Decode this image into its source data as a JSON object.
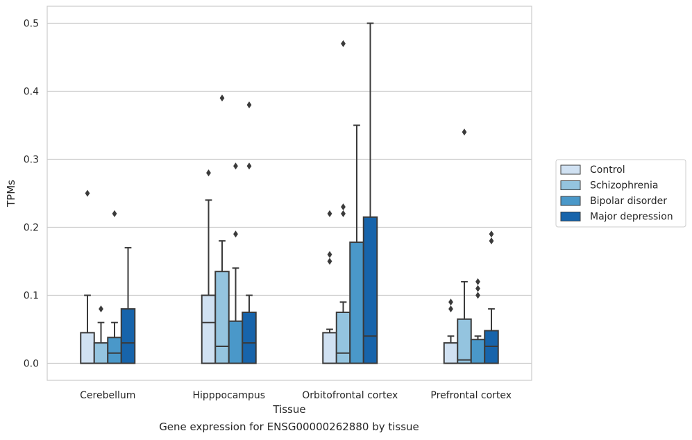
{
  "chart_data": {
    "type": "box",
    "caption": "Gene expression for ENSG00000262880 by tissue",
    "xlabel": "Tissue",
    "ylabel": "TPMs",
    "ylim": [
      -0.025,
      0.525
    ],
    "yticks": [
      0.0,
      0.1,
      0.2,
      0.3,
      0.4,
      0.5
    ],
    "ytick_labels": [
      "0.0",
      "0.1",
      "0.2",
      "0.3",
      "0.4",
      "0.5"
    ],
    "grid": "horizontal",
    "legend_position": "right",
    "categories": [
      "Cerebellum",
      "Hipppocampus",
      "Orbitofrontal cortex",
      "Prefrontal cortex"
    ],
    "series": [
      {
        "name": "Control",
        "color": "#d0e1f2",
        "boxes": [
          {
            "whisker_low": 0.0,
            "q1": 0.0,
            "median": 0.0,
            "q3": 0.045,
            "whisker_high": 0.1,
            "outliers": [
              0.25
            ]
          },
          {
            "whisker_low": 0.0,
            "q1": 0.0,
            "median": 0.06,
            "q3": 0.1,
            "whisker_high": 0.24,
            "outliers": [
              0.28
            ]
          },
          {
            "whisker_low": 0.0,
            "q1": 0.0,
            "median": 0.0,
            "q3": 0.045,
            "whisker_high": 0.05,
            "outliers": [
              0.15,
              0.16,
              0.22
            ]
          },
          {
            "whisker_low": 0.0,
            "q1": 0.0,
            "median": 0.0,
            "q3": 0.03,
            "whisker_high": 0.04,
            "outliers": [
              0.08,
              0.09
            ]
          }
        ]
      },
      {
        "name": "Schizophrenia",
        "color": "#94c4df",
        "boxes": [
          {
            "whisker_low": 0.0,
            "q1": 0.0,
            "median": 0.0,
            "q3": 0.03,
            "whisker_high": 0.06,
            "outliers": [
              0.08
            ]
          },
          {
            "whisker_low": 0.0,
            "q1": 0.0,
            "median": 0.025,
            "q3": 0.135,
            "whisker_high": 0.18,
            "outliers": [
              0.39
            ]
          },
          {
            "whisker_low": 0.0,
            "q1": 0.0,
            "median": 0.015,
            "q3": 0.075,
            "whisker_high": 0.09,
            "outliers": [
              0.22,
              0.23,
              0.47
            ]
          },
          {
            "whisker_low": 0.0,
            "q1": 0.0,
            "median": 0.005,
            "q3": 0.065,
            "whisker_high": 0.12,
            "outliers": [
              0.34
            ]
          }
        ]
      },
      {
        "name": "Bipolar disorder",
        "color": "#4a98c9",
        "boxes": [
          {
            "whisker_low": 0.0,
            "q1": 0.0,
            "median": 0.015,
            "q3": 0.038,
            "whisker_high": 0.06,
            "outliers": [
              0.22
            ]
          },
          {
            "whisker_low": 0.0,
            "q1": 0.0,
            "median": 0.0,
            "q3": 0.062,
            "whisker_high": 0.14,
            "outliers": [
              0.19,
              0.29
            ]
          },
          {
            "whisker_low": 0.0,
            "q1": 0.0,
            "median": 0.0,
            "q3": 0.178,
            "whisker_high": 0.35,
            "outliers": []
          },
          {
            "whisker_low": 0.0,
            "q1": 0.0,
            "median": 0.0,
            "q3": 0.035,
            "whisker_high": 0.04,
            "outliers": [
              0.1,
              0.11,
              0.12
            ]
          }
        ]
      },
      {
        "name": "Major depression",
        "color": "#1764ab",
        "boxes": [
          {
            "whisker_low": 0.0,
            "q1": 0.0,
            "median": 0.03,
            "q3": 0.08,
            "whisker_high": 0.17,
            "outliers": []
          },
          {
            "whisker_low": 0.0,
            "q1": 0.0,
            "median": 0.03,
            "q3": 0.075,
            "whisker_high": 0.1,
            "outliers": [
              0.29,
              0.38
            ]
          },
          {
            "whisker_low": 0.0,
            "q1": 0.0,
            "median": 0.04,
            "q3": 0.215,
            "whisker_high": 0.5,
            "outliers": []
          },
          {
            "whisker_low": 0.0,
            "q1": 0.0,
            "median": 0.025,
            "q3": 0.048,
            "whisker_high": 0.08,
            "outliers": [
              0.18,
              0.19
            ]
          }
        ]
      }
    ]
  }
}
